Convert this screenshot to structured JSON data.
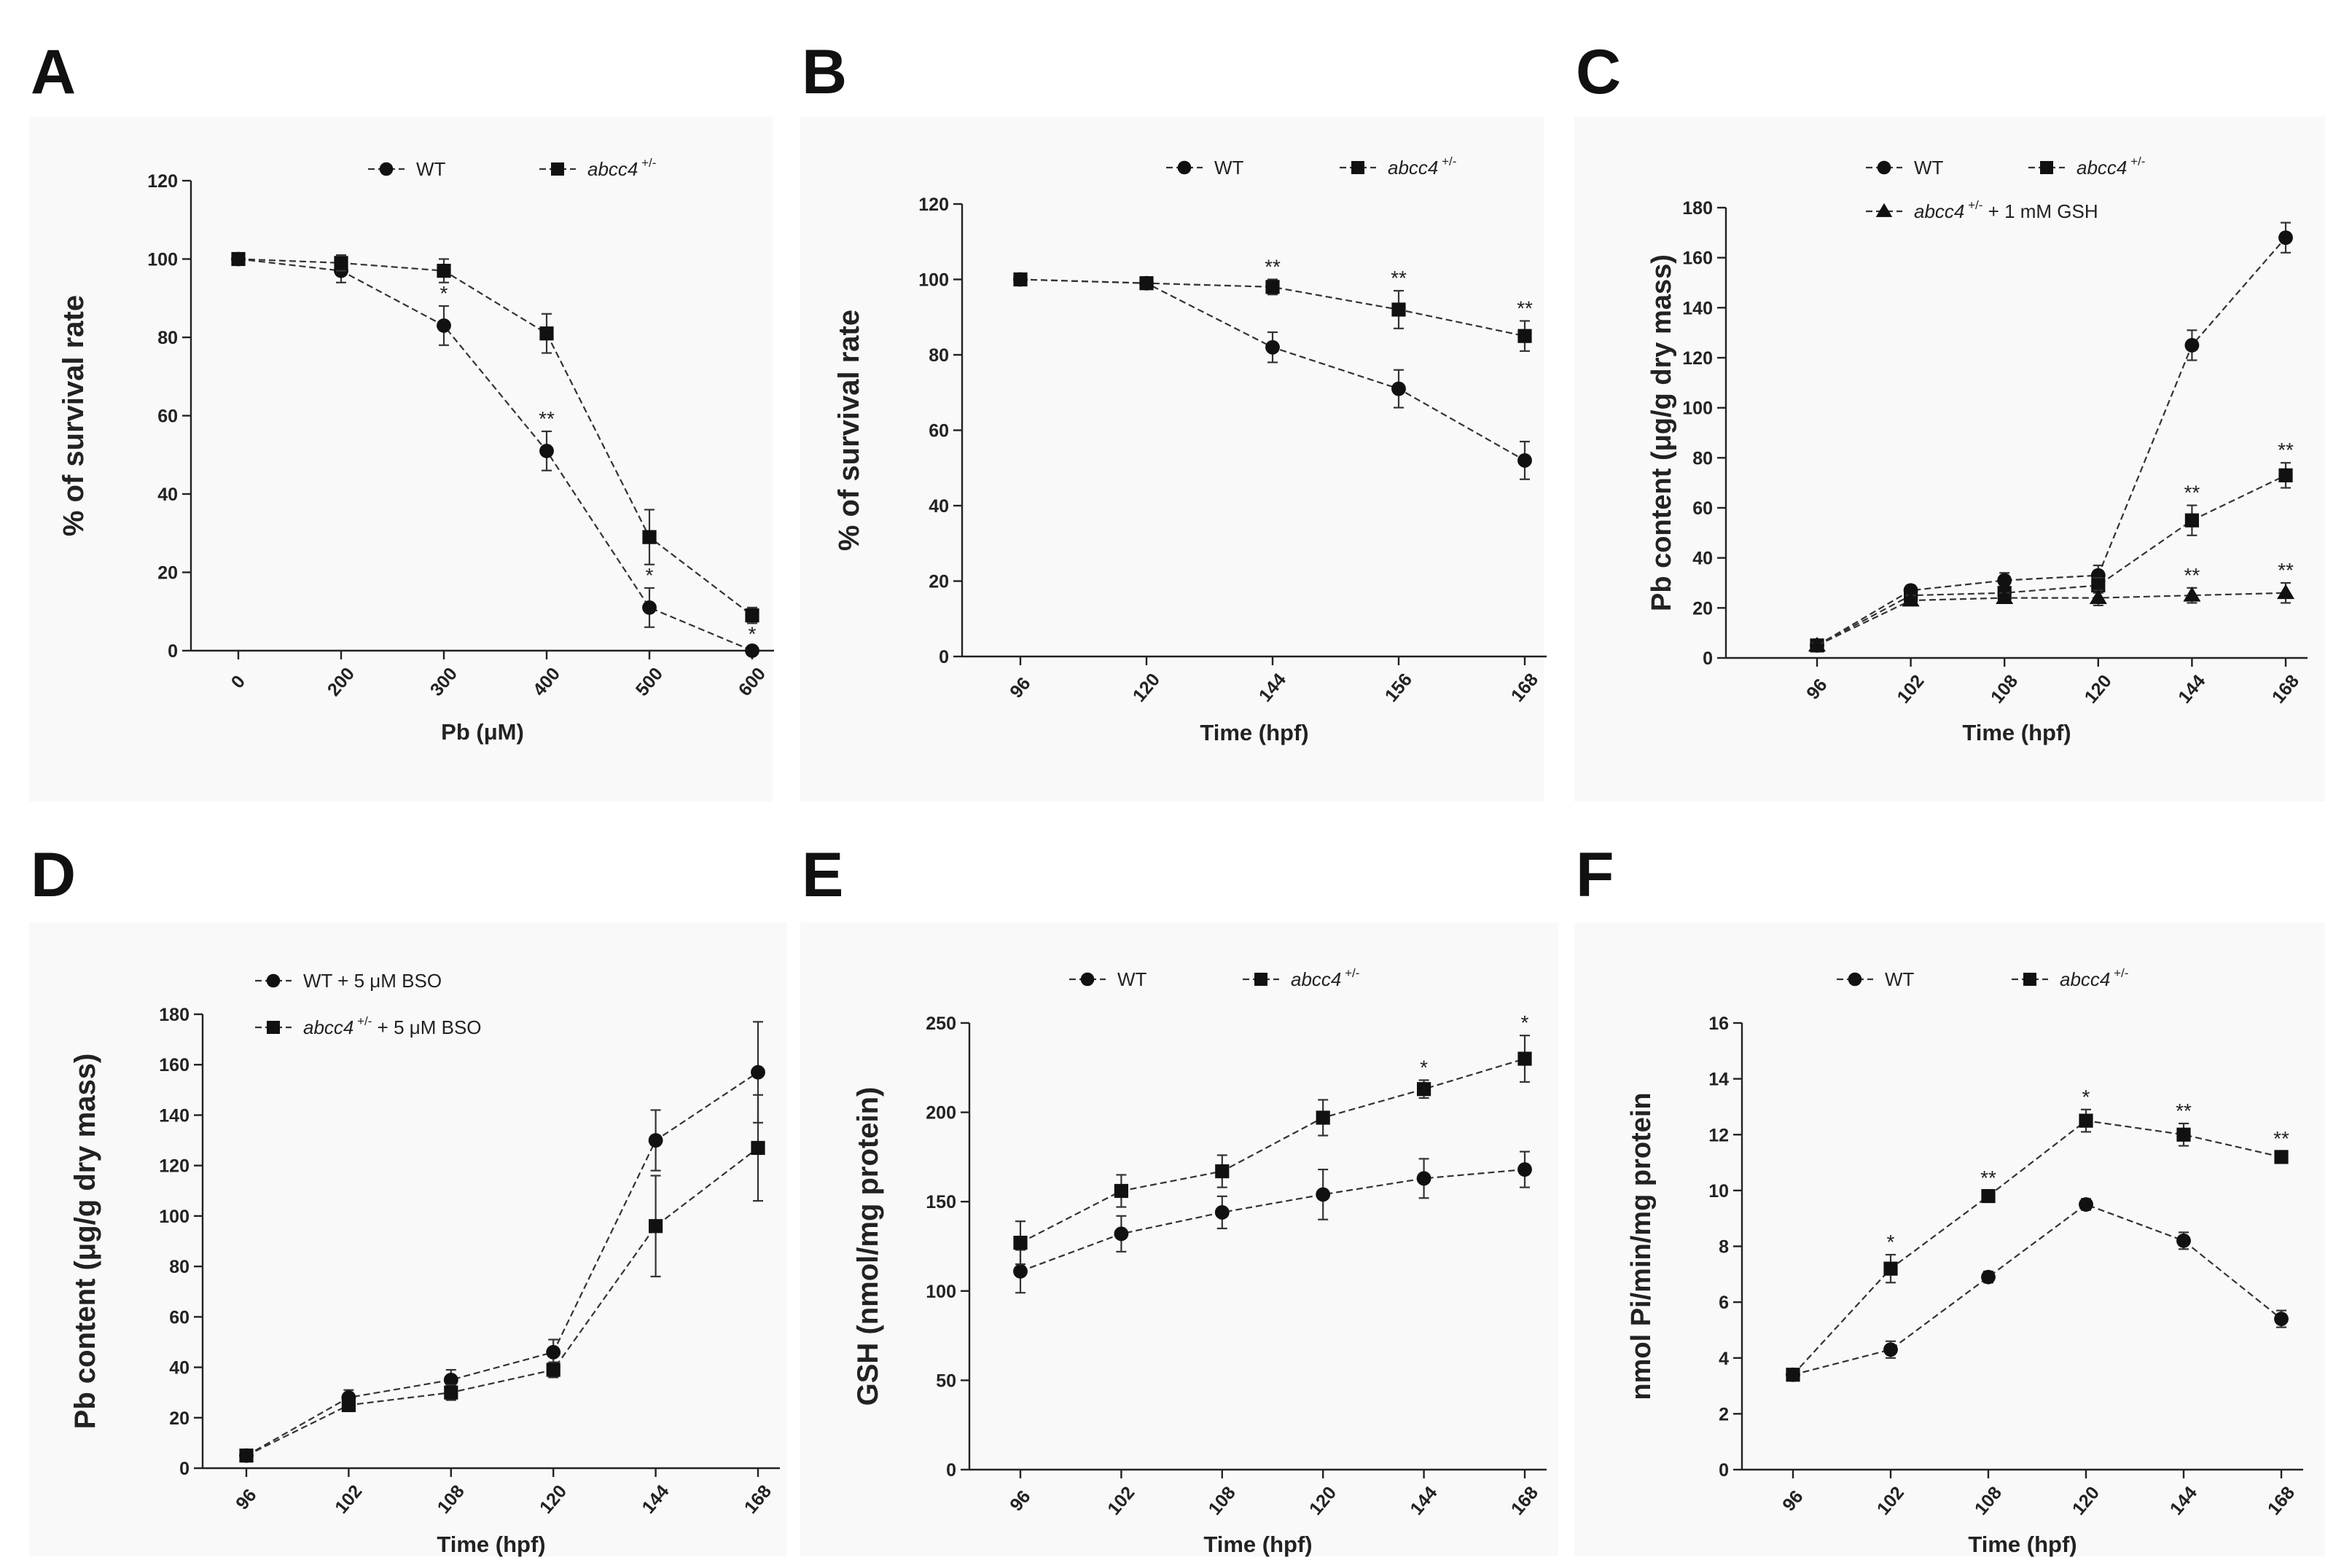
{
  "chart_data": [
    {
      "panel": "A",
      "type": "line",
      "xlabel": "Pb (μM)",
      "ylabel": "% of survival rate",
      "ylim": [
        0,
        120
      ],
      "yticks": [
        0,
        20,
        40,
        60,
        80,
        100,
        120
      ],
      "categories": [
        "0",
        "200",
        "300",
        "400",
        "500",
        "600"
      ],
      "series": [
        {
          "name": "WT",
          "name_sup": "",
          "marker": "circle",
          "values": [
            100,
            97,
            83,
            51,
            11,
            0
          ],
          "errors": [
            1,
            3,
            5,
            5,
            5,
            1
          ],
          "stars": [
            "",
            "",
            "*",
            "**",
            "*",
            "*"
          ]
        },
        {
          "name": "abcc4",
          "name_sup": "+/-",
          "marker": "square",
          "values": [
            100,
            99,
            97,
            81,
            29,
            9
          ],
          "errors": [
            1,
            2,
            3,
            5,
            7,
            2
          ],
          "stars": [
            "",
            "",
            "",
            "",
            "",
            ""
          ]
        }
      ]
    },
    {
      "panel": "B",
      "type": "line",
      "xlabel": "Time (hpf)",
      "ylabel": "% of survival rate",
      "ylim": [
        0,
        120
      ],
      "yticks": [
        0,
        20,
        40,
        60,
        80,
        100,
        120
      ],
      "categories": [
        "96",
        "120",
        "144",
        "156",
        "168"
      ],
      "series": [
        {
          "name": "WT",
          "name_sup": "",
          "marker": "circle",
          "values": [
            100,
            99,
            82,
            71,
            52
          ],
          "errors": [
            1,
            1,
            4,
            5,
            5
          ],
          "stars": [
            "",
            "",
            "",
            "",
            ""
          ]
        },
        {
          "name": "abcc4",
          "name_sup": "+/-",
          "marker": "square",
          "values": [
            100,
            99,
            98,
            92,
            85
          ],
          "errors": [
            1,
            1,
            2,
            5,
            4
          ],
          "stars": [
            "",
            "",
            "**",
            "**",
            "**"
          ]
        }
      ]
    },
    {
      "panel": "C",
      "type": "line",
      "xlabel": "Time (hpf)",
      "ylabel": "Pb content (μg/g dry mass)",
      "ylim": [
        0,
        180
      ],
      "yticks": [
        0,
        20,
        40,
        60,
        80,
        100,
        120,
        140,
        160,
        180
      ],
      "categories": [
        "96",
        "102",
        "108",
        "120",
        "144",
        "168"
      ],
      "series": [
        {
          "name": "WT",
          "name_sup": "",
          "name_suffix": "",
          "marker": "circle",
          "values": [
            5,
            27,
            31,
            33,
            125,
            168
          ],
          "errors": [
            1,
            2,
            3,
            4,
            6,
            6
          ],
          "stars": [
            "",
            "",
            "",
            "",
            "",
            ""
          ]
        },
        {
          "name": "abcc4",
          "name_sup": "+/-",
          "name_suffix": "",
          "marker": "square",
          "values": [
            5,
            25,
            26,
            29,
            55,
            73
          ],
          "errors": [
            1,
            2,
            2,
            3,
            6,
            5
          ],
          "stars": [
            "",
            "",
            "",
            "",
            "**",
            "**"
          ]
        },
        {
          "name": "abcc4",
          "name_sup": "+/-",
          "name_suffix": "+ 1 mM GSH",
          "marker": "triangle",
          "values": [
            5,
            23,
            24,
            24,
            25,
            26
          ],
          "errors": [
            1,
            2,
            2,
            3,
            3,
            4
          ],
          "stars": [
            "",
            "",
            "",
            "",
            "**",
            "**"
          ]
        }
      ]
    },
    {
      "panel": "D",
      "type": "line",
      "xlabel": "Time (hpf)",
      "ylabel": "Pb content (μg/g dry mass)",
      "ylim": [
        0,
        180
      ],
      "yticks": [
        0,
        20,
        40,
        60,
        80,
        100,
        120,
        140,
        160,
        180
      ],
      "categories": [
        "96",
        "102",
        "108",
        "120",
        "144",
        "168"
      ],
      "series": [
        {
          "name": "WT + 5 μM BSO",
          "name_sup": "",
          "name_suffix": "",
          "marker": "circle",
          "values": [
            5,
            28,
            35,
            46,
            130,
            157
          ],
          "errors": [
            1,
            3,
            4,
            5,
            12,
            20
          ],
          "stars": [
            "",
            "",
            "",
            "",
            "",
            ""
          ]
        },
        {
          "name": "abcc4",
          "name_sup": "+/-",
          "name_suffix": "+ 5 μM BSO",
          "marker": "square",
          "values": [
            5,
            25,
            30,
            39,
            96,
            127
          ],
          "errors": [
            1,
            2,
            3,
            3,
            20,
            21
          ],
          "stars": [
            "",
            "",
            "",
            "",
            "",
            ""
          ]
        }
      ]
    },
    {
      "panel": "E",
      "type": "line",
      "xlabel": "Time (hpf)",
      "ylabel": "GSH (nmol/mg protein)",
      "ylim": [
        0,
        250
      ],
      "yticks": [
        0,
        50,
        100,
        150,
        200,
        250
      ],
      "categories": [
        "96",
        "102",
        "108",
        "120",
        "144",
        "168"
      ],
      "series": [
        {
          "name": "WT",
          "name_sup": "",
          "marker": "circle",
          "values": [
            111,
            132,
            144,
            154,
            163,
            168
          ],
          "errors": [
            12,
            10,
            9,
            14,
            11,
            10
          ],
          "stars": [
            "",
            "",
            "",
            "",
            "",
            ""
          ]
        },
        {
          "name": "abcc4",
          "name_sup": "+/-",
          "marker": "square",
          "values": [
            127,
            156,
            167,
            197,
            213,
            230
          ],
          "errors": [
            12,
            9,
            9,
            10,
            5,
            13
          ],
          "stars": [
            "",
            "",
            "",
            "",
            "*",
            "*"
          ]
        }
      ]
    },
    {
      "panel": "F",
      "type": "line",
      "xlabel": "Time (hpf)",
      "ylabel": "nmol Pi/min/mg protein",
      "ylim": [
        0,
        16
      ],
      "yticks": [
        0,
        2,
        4,
        6,
        8,
        10,
        12,
        14,
        16
      ],
      "categories": [
        "96",
        "102",
        "108",
        "120",
        "144",
        "168"
      ],
      "series": [
        {
          "name": "WT",
          "name_sup": "",
          "marker": "circle",
          "values": [
            3.4,
            4.3,
            6.9,
            9.5,
            8.2,
            5.4
          ],
          "errors": [
            0.2,
            0.3,
            0.2,
            0.2,
            0.3,
            0.3
          ],
          "stars": [
            "",
            "",
            "",
            "",
            "",
            ""
          ]
        },
        {
          "name": "abcc4",
          "name_sup": "+/-",
          "marker": "square",
          "values": [
            3.4,
            7.2,
            9.8,
            12.5,
            12.0,
            11.2
          ],
          "errors": [
            0.2,
            0.5,
            0.2,
            0.4,
            0.4,
            0.2
          ],
          "stars": [
            "",
            "*",
            "**",
            "*",
            "**",
            "**"
          ]
        }
      ]
    }
  ]
}
